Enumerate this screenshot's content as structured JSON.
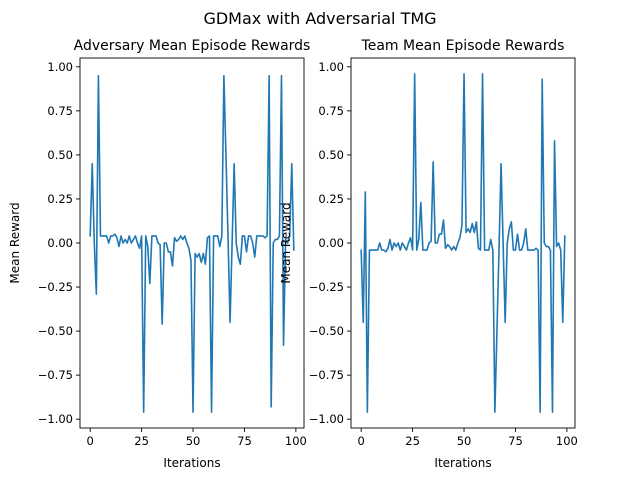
{
  "figure": {
    "title": "GDMax with Adversarial TMG"
  },
  "chart_data": [
    {
      "type": "line",
      "title": "Adversary Mean Episode Rewards",
      "xlabel": "Iterations",
      "ylabel": "Mean Reward",
      "xlim": [
        -4.95,
        103.95
      ],
      "ylim": [
        -1.05,
        1.05
      ],
      "xticks": [
        0,
        25,
        50,
        75,
        100
      ],
      "yticks": [
        -1.0,
        -0.75,
        -0.5,
        -0.25,
        0.0,
        0.25,
        0.5,
        0.75,
        1.0
      ],
      "xtick_labels": [
        "0",
        "25",
        "50",
        "75",
        "100"
      ],
      "ytick_labels": [
        "−1.00",
        "−0.75",
        "−0.50",
        "−0.25",
        "0.00",
        "0.25",
        "0.50",
        "0.75",
        "1.00"
      ],
      "grid": false,
      "color": "#1f77b4",
      "series": [
        {
          "x": [
            0,
            1,
            2,
            3,
            4,
            5,
            6,
            7,
            8,
            9,
            10,
            11,
            12,
            13,
            14,
            15,
            16,
            17,
            18,
            19,
            20,
            21,
            22,
            23,
            24,
            25,
            26,
            27,
            28,
            29,
            30,
            31,
            32,
            33,
            34,
            35,
            36,
            37,
            38,
            39,
            40,
            41,
            42,
            43,
            44,
            45,
            46,
            47,
            48,
            49,
            50,
            51,
            52,
            53,
            54,
            55,
            56,
            57,
            58,
            59,
            60,
            61,
            62,
            63,
            64,
            65,
            66,
            67,
            68,
            69,
            70,
            71,
            72,
            73,
            74,
            75,
            76,
            77,
            78,
            79,
            80,
            81,
            82,
            83,
            84,
            85,
            86,
            87,
            88,
            89,
            90,
            91,
            92,
            93,
            94,
            95,
            96,
            97,
            98,
            99
          ],
          "y": [
            0.04,
            0.45,
            0.0,
            -0.29,
            0.95,
            0.04,
            0.04,
            0.04,
            0.04,
            0.0,
            0.04,
            0.04,
            0.05,
            0.03,
            -0.02,
            0.04,
            0.0,
            0.02,
            0.0,
            0.04,
            0.0,
            0.02,
            0.04,
            0.0,
            -0.03,
            0.04,
            -0.96,
            0.04,
            -0.02,
            -0.23,
            0.04,
            0.04,
            0.04,
            0.0,
            -0.01,
            -0.46,
            0.0,
            0.0,
            -0.05,
            -0.05,
            -0.13,
            0.03,
            0.01,
            0.02,
            0.04,
            0.02,
            0.04,
            0.0,
            -0.03,
            -0.1,
            -0.96,
            -0.06,
            -0.08,
            -0.06,
            -0.11,
            -0.06,
            -0.12,
            0.03,
            0.04,
            -0.96,
            0.04,
            0.04,
            0.04,
            -0.02,
            0.04,
            0.95,
            0.5,
            0.04,
            -0.45,
            0.0,
            0.45,
            0.0,
            -0.08,
            -0.12,
            0.04,
            0.04,
            -0.05,
            0.04,
            0.04,
            0.0,
            -0.08,
            0.04,
            0.04,
            0.04,
            0.04,
            0.03,
            0.04,
            0.95,
            -0.93,
            0.0,
            0.02,
            0.02,
            0.04,
            0.95,
            -0.58,
            0.02,
            0.0,
            0.04,
            0.45,
            -0.04
          ]
        }
      ]
    },
    {
      "type": "line",
      "title": "Team Mean Episode Rewards",
      "xlabel": "Iterations",
      "ylabel": "Mean Reward",
      "xlim": [
        -4.95,
        103.95
      ],
      "ylim": [
        -1.05,
        1.05
      ],
      "xticks": [
        0,
        25,
        50,
        75,
        100
      ],
      "yticks": [
        -1.0,
        -0.75,
        -0.5,
        -0.25,
        0.0,
        0.25,
        0.5,
        0.75,
        1.0
      ],
      "xtick_labels": [
        "0",
        "25",
        "50",
        "75",
        "100"
      ],
      "ytick_labels": [
        "−1.00",
        "−0.75",
        "−0.50",
        "−0.25",
        "0.00",
        "0.25",
        "0.50",
        "0.75",
        "1.00"
      ],
      "grid": false,
      "color": "#1f77b4",
      "series": [
        {
          "x": [
            0,
            1,
            2,
            3,
            4,
            5,
            6,
            7,
            8,
            9,
            10,
            11,
            12,
            13,
            14,
            15,
            16,
            17,
            18,
            19,
            20,
            21,
            22,
            23,
            24,
            25,
            26,
            27,
            28,
            29,
            30,
            31,
            32,
            33,
            34,
            35,
            36,
            37,
            38,
            39,
            40,
            41,
            42,
            43,
            44,
            45,
            46,
            47,
            48,
            49,
            50,
            51,
            52,
            53,
            54,
            55,
            56,
            57,
            58,
            59,
            60,
            61,
            62,
            63,
            64,
            65,
            66,
            67,
            68,
            69,
            70,
            71,
            72,
            73,
            74,
            75,
            76,
            77,
            78,
            79,
            80,
            81,
            82,
            83,
            84,
            85,
            86,
            87,
            88,
            89,
            90,
            91,
            92,
            93,
            94,
            95,
            96,
            97,
            98,
            99
          ],
          "y": [
            -0.04,
            -0.45,
            0.29,
            -0.96,
            -0.04,
            -0.04,
            -0.04,
            -0.04,
            -0.04,
            0.0,
            -0.04,
            -0.04,
            -0.05,
            -0.03,
            0.02,
            -0.04,
            0.0,
            -0.02,
            0.0,
            -0.04,
            0.0,
            -0.02,
            -0.04,
            0.0,
            0.03,
            -0.04,
            0.96,
            -0.04,
            0.02,
            0.23,
            -0.04,
            -0.04,
            -0.04,
            0.0,
            0.01,
            0.46,
            0.0,
            0.0,
            0.05,
            0.05,
            0.13,
            -0.03,
            -0.01,
            -0.02,
            -0.04,
            -0.02,
            -0.04,
            0.0,
            0.03,
            0.1,
            0.96,
            0.06,
            0.08,
            0.06,
            0.11,
            0.06,
            0.12,
            -0.03,
            -0.04,
            0.96,
            -0.04,
            -0.04,
            -0.04,
            0.02,
            -0.04,
            -0.96,
            -0.5,
            -0.04,
            0.45,
            0.0,
            -0.45,
            0.0,
            0.08,
            0.12,
            -0.04,
            -0.04,
            0.05,
            -0.04,
            -0.04,
            0.0,
            0.08,
            -0.04,
            -0.04,
            -0.04,
            -0.04,
            -0.03,
            -0.04,
            -0.96,
            0.93,
            0.0,
            -0.02,
            -0.02,
            -0.04,
            -0.96,
            0.58,
            -0.02,
            0.0,
            -0.04,
            -0.45,
            0.04
          ]
        }
      ]
    }
  ]
}
